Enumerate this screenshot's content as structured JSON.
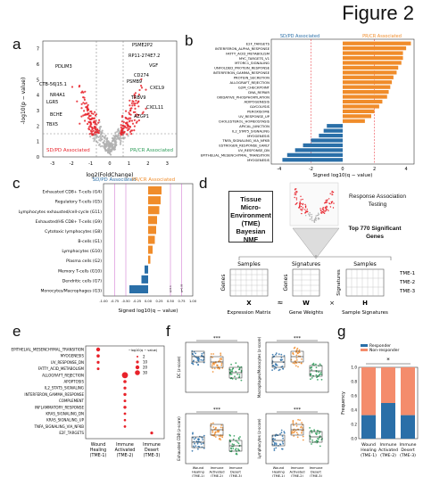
{
  "figure_title": "Figure 2",
  "panel_labels": {
    "a": "a",
    "b": "b",
    "c": "c",
    "d": "d",
    "e": "e",
    "f": "f",
    "g": "g"
  },
  "colors": {
    "up": "#e8222a",
    "blue": "#2a6fa8",
    "orange": "#f08c2a",
    "green": "#2c9c58",
    "gray": "#b0b0b0",
    "salmon": "#f48c6c",
    "dark_blue": "#1f4f82"
  },
  "panel_a": {
    "ylabel": "-log10(p − value)",
    "xlabel": "log2(FoldChange)",
    "left_tag": "SD/PD Associated",
    "right_tag": "PR/CR Associated",
    "xticks": [
      "-3",
      "-2",
      "-1",
      "0",
      "1",
      "2",
      "3"
    ],
    "yticks": [
      "0",
      "1",
      "2",
      "3",
      "4",
      "5",
      "6",
      "7"
    ],
    "genes_left": [
      "PDLIM3",
      "CTB-56J15.1",
      "NR4A1",
      "LGR5",
      "BCHE",
      "TBX5"
    ],
    "genes_right": [
      "PSME2P2",
      "RP11-274E7.2",
      "VGF",
      "CD274",
      "PSMB9",
      "CXCL9",
      "TRBV9",
      "CXCL11",
      "AZGP1"
    ]
  },
  "panel_b": {
    "left_tag": "SD/PD Associated",
    "right_tag": "PR/CR Associated",
    "xlabel": "Signed log10(q − value)",
    "xticks": [
      "-4",
      "-2",
      "0",
      "2",
      "4"
    ],
    "pathways": [
      "E2F_TARGETS",
      "INTERFERON_ALPHA_RESPONSE",
      "FATTY_ACID_METABOLISM",
      "MYC_TARGETS_V1",
      "MTORC1_SIGNALING",
      "UNFOLDED_PROTEIN_RESPONSE",
      "INTERFERON_GAMMA_RESPONSE",
      "PROTEIN_SECRETION",
      "ALLOGRAFT_REJECTION",
      "G2M_CHECKPOINT",
      "DNA_REPAIR",
      "OXIDATIVE_PHOSPHORYLATION",
      "ADIPOGENESIS",
      "GLYCOLYSIS",
      "PEROXISOME",
      "UV_RESPONSE_UP",
      "CHOLESTEROL_HOMEOSTASIS",
      "APICAL_JUNCTION",
      "IL2_STAT5_SIGNALING",
      "MYOGENESIS",
      "TNFA_SIGNALING_VIA_NFKB",
      "ESTROGEN_RESPONSE_EARLY",
      "UV_RESPONSE_DN",
      "EPITHELIAL_MESENCHYMAL_TRANSITION",
      "MYOGENESIS"
    ]
  },
  "panel_c": {
    "left_tag": "SD/PD Associated",
    "right_tag": "PR/CR Associated",
    "xlabel": "Signed log10(q − value)",
    "xticks": [
      "-1.00",
      "-0.75",
      "-0.50",
      "-0.25",
      "0.00",
      "0.25",
      "0.50",
      "0.75",
      "1.00"
    ],
    "vline_labels": [
      "q=0.1",
      "q=0.05"
    ],
    "cells": [
      "Exhausted CD8+ T-cells (G4)",
      "Regulatory T-cells (G5)",
      "Lymphocytes exhausted/cell-cycle (G11)",
      "Exhausted/HS CD8+ T-cells (G9)",
      "Cytotoxic lymphocytes (G8)",
      "B-cells (G1)",
      "Lymphocytes (G10)",
      "Plasma cells (G2)",
      "Memory T-cells (G10)",
      "Dendritic cells (G7)",
      "Monocytes/Macrophages (G3)"
    ]
  },
  "panel_d": {
    "tme_box": "Tissue Micro-Environment (TME) Bayesian NMF",
    "response_text": "Response Association Testing",
    "top_genes": "Top 770 Significant Genes",
    "samples1": "Samples",
    "signatures": "Signatures",
    "samples2": "Samples",
    "genes1": "Genes",
    "genes2": "Genes",
    "signatures_v": "Signatures",
    "x": "X",
    "approx": "≈",
    "w": "W",
    "times": "×",
    "h": "H",
    "expr": "Expression Matrix",
    "gene_weights": "Gene Weights",
    "sample_sigs": "Sample Signatures",
    "tme_labels": [
      "TME-1",
      "TME-2",
      "TME-3"
    ]
  },
  "panel_e": {
    "legend_title": "−log10(q − value)",
    "legend_vals": [
      "2",
      "10",
      "20",
      "30"
    ],
    "rows": [
      "EPITHELIAL_MESENCHYMAL_TRANSITION",
      "MYOGENESIS",
      "UV_RESPONSE_DN",
      "FATTY_ACID_METABOLISM",
      "ALLOGRAFT_REJECTION",
      "APOPTOSIS",
      "IL2_STAT5_SIGNALING",
      "INTERFERON_GAMMA_RESPONSE",
      "COMPLEMENT",
      "INFLAMMATORY_RESPONSE",
      "KRAS_SIGNALING_DN",
      "KRAS_SIGNALING_UP",
      "TNFA_SIGNALING_VIA_NFKB",
      "E2F_TARGETS"
    ],
    "cols": [
      "Wound Healing (TME-1)",
      "Immune Activated (TME-2)",
      "Immune Desert (TME-3)"
    ]
  },
  "panel_f": {
    "ylabels": [
      "DC (z-score)",
      "Macrophages/Monocytes (z-score)",
      "Exhausted CD8 (z-score)",
      "Lymphocytes (z-score)"
    ],
    "sig": "***",
    "xcats": [
      "Wound Healing (TME-1)",
      "Immune Activated (TME-2)",
      "Immune Desert (TME-3)"
    ]
  },
  "panel_g": {
    "legend": [
      "Responder",
      "Non-responder"
    ],
    "ylabel": "Frequency",
    "sig": "*",
    "yticks": [
      "0.0",
      "0.2",
      "0.4",
      "0.6",
      "0.8",
      "1.0"
    ],
    "cats": [
      "Wound Healing (TME-1)",
      "Immune Activated (TME-2)",
      "Immune Desert (TME-3)"
    ]
  },
  "chart_data": [
    {
      "type": "bar",
      "panel": "b",
      "title": "",
      "xlabel": "Signed log10(q − value)",
      "categories": [
        "E2F_TARGETS",
        "INTERFERON_ALPHA_RESPONSE",
        "FATTY_ACID_METABOLISM",
        "MYC_TARGETS_V1",
        "MTORC1_SIGNALING",
        "UNFOLDED_PROTEIN_RESPONSE",
        "INTERFERON_GAMMA_RESPONSE",
        "PROTEIN_SECRETION",
        "ALLOGRAFT_REJECTION",
        "G2M_CHECKPOINT",
        "DNA_REPAIR",
        "OXIDATIVE_PHOSPHORYLATION",
        "ADIPOGENESIS",
        "GLYCOLYSIS",
        "PEROXISOME",
        "UV_RESPONSE_UP",
        "CHOLESTEROL_HOMEOSTASIS",
        "APICAL_JUNCTION",
        "IL2_STAT5_SIGNALING",
        "MYOGENESIS",
        "TNFA_SIGNALING_VIA_NFKB",
        "ESTROGEN_RESPONSE_EARLY",
        "UV_RESPONSE_DN",
        "EPITHELIAL_MESENCHYMAL_TRANSITION",
        "MYOGENESIS"
      ],
      "values": [
        4.3,
        4.0,
        3.8,
        3.8,
        3.7,
        3.5,
        3.4,
        3.2,
        3.1,
        3.0,
        2.9,
        2.8,
        2.5,
        2.3,
        2.0,
        1.8,
        1.4,
        -1.0,
        -1.2,
        -1.5,
        -2.0,
        -2.5,
        -3.0,
        -3.5,
        -3.8
      ],
      "xlim": [
        -4.5,
        4.5
      ]
    },
    {
      "type": "bar",
      "panel": "c",
      "title": "",
      "xlabel": "Signed log10(q − value)",
      "categories": [
        "Exhausted CD8+ T-cells (G4)",
        "Regulatory T-cells (G5)",
        "Lymphocytes exhausted/cell-cycle (G11)",
        "Exhausted/HS CD8+ T-cells (G9)",
        "Cytotoxic lymphocytes (G8)",
        "B-cells (G1)",
        "Lymphocytes (G10)",
        "Plasma cells (G2)",
        "Memory T-cells (G10)",
        "Dendritic cells (G7)",
        "Monocytes/Macrophages (G3)"
      ],
      "values": [
        0.3,
        0.28,
        0.25,
        0.2,
        0.18,
        0.15,
        0.1,
        0.05,
        -0.08,
        -0.15,
        -0.42
      ],
      "xlim": [
        -1.0,
        1.0
      ]
    },
    {
      "type": "bar",
      "panel": "g",
      "title": "",
      "ylabel": "Frequency",
      "categories": [
        "Wound Healing (TME-1)",
        "Immune Activated (TME-2)",
        "Immune Desert (TME-3)"
      ],
      "series": [
        {
          "name": "Responder",
          "values": [
            0.33,
            0.5,
            0.33
          ]
        },
        {
          "name": "Non-responder",
          "values": [
            0.67,
            0.5,
            0.67
          ]
        }
      ],
      "ylim": [
        0,
        1
      ]
    }
  ]
}
